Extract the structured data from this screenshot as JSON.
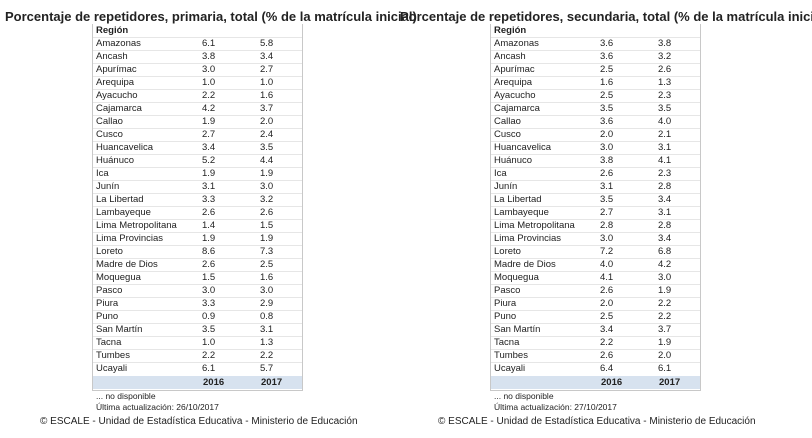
{
  "panels": [
    {
      "title": "Porcentaje de repetidores, primaria, total (% de la matrícula inicial)",
      "header": "Región",
      "rows": [
        [
          "Amazonas",
          "6.1",
          "5.8"
        ],
        [
          "Ancash",
          "3.8",
          "3.4"
        ],
        [
          "Apurímac",
          "3.0",
          "2.7"
        ],
        [
          "Arequipa",
          "1.0",
          "1.0"
        ],
        [
          "Ayacucho",
          "2.2",
          "1.6"
        ],
        [
          "Cajamarca",
          "4.2",
          "3.7"
        ],
        [
          "Callao",
          "1.9",
          "2.0"
        ],
        [
          "Cusco",
          "2.7",
          "2.4"
        ],
        [
          "Huancavelica",
          "3.4",
          "3.5"
        ],
        [
          "Huánuco",
          "5.2",
          "4.4"
        ],
        [
          "Ica",
          "1.9",
          "1.9"
        ],
        [
          "Junín",
          "3.1",
          "3.0"
        ],
        [
          "La Libertad",
          "3.3",
          "3.2"
        ],
        [
          "Lambayeque",
          "2.6",
          "2.6"
        ],
        [
          "Lima Metropolitana",
          "1.4",
          "1.5"
        ],
        [
          "Lima Provincias",
          "1.9",
          "1.9"
        ],
        [
          "Loreto",
          "8.6",
          "7.3"
        ],
        [
          "Madre de Dios",
          "2.6",
          "2.5"
        ],
        [
          "Moquegua",
          "1.5",
          "1.6"
        ],
        [
          "Pasco",
          "3.0",
          "3.0"
        ],
        [
          "Piura",
          "3.3",
          "2.9"
        ],
        [
          "Puno",
          "0.9",
          "0.8"
        ],
        [
          "San Martín",
          "3.5",
          "3.1"
        ],
        [
          "Tacna",
          "1.0",
          "1.3"
        ],
        [
          "Tumbes",
          "2.2",
          "2.2"
        ],
        [
          "Ucayali",
          "6.1",
          "5.7"
        ]
      ],
      "years": [
        "2016",
        "2017"
      ],
      "note": "...  no disponible",
      "updated": "Última actualización: 26/10/2017",
      "credit": "© ESCALE - Unidad de Estadística Educativa - Ministerio de Educación"
    },
    {
      "title": "Porcentaje de repetidores, secundaria, total (% de la matrícula inicial)",
      "header": "Región",
      "rows": [
        [
          "Amazonas",
          "3.6",
          "3.8"
        ],
        [
          "Ancash",
          "3.6",
          "3.2"
        ],
        [
          "Apurímac",
          "2.5",
          "2.6"
        ],
        [
          "Arequipa",
          "1.6",
          "1.3"
        ],
        [
          "Ayacucho",
          "2.5",
          "2.3"
        ],
        [
          "Cajamarca",
          "3.5",
          "3.5"
        ],
        [
          "Callao",
          "3.6",
          "4.0"
        ],
        [
          "Cusco",
          "2.0",
          "2.1"
        ],
        [
          "Huancavelica",
          "3.0",
          "3.1"
        ],
        [
          "Huánuco",
          "3.8",
          "4.1"
        ],
        [
          "Ica",
          "2.6",
          "2.3"
        ],
        [
          "Junín",
          "3.1",
          "2.8"
        ],
        [
          "La Libertad",
          "3.5",
          "3.4"
        ],
        [
          "Lambayeque",
          "2.7",
          "3.1"
        ],
        [
          "Lima Metropolitana",
          "2.8",
          "2.8"
        ],
        [
          "Lima Provincias",
          "3.0",
          "3.4"
        ],
        [
          "Loreto",
          "7.2",
          "6.8"
        ],
        [
          "Madre de Dios",
          "4.0",
          "4.2"
        ],
        [
          "Moquegua",
          "4.1",
          "3.0"
        ],
        [
          "Pasco",
          "2.6",
          "1.9"
        ],
        [
          "Piura",
          "2.0",
          "2.2"
        ],
        [
          "Puno",
          "2.5",
          "2.2"
        ],
        [
          "San Martín",
          "3.4",
          "3.7"
        ],
        [
          "Tacna",
          "2.2",
          "1.9"
        ],
        [
          "Tumbes",
          "2.6",
          "2.0"
        ],
        [
          "Ucayali",
          "6.4",
          "6.1"
        ]
      ],
      "years": [
        "2016",
        "2017"
      ],
      "note": "...  no disponible",
      "updated": "Última actualización: 27/10/2017",
      "credit": "© ESCALE - Unidad de Estadística Educativa - Ministerio de Educación"
    }
  ]
}
